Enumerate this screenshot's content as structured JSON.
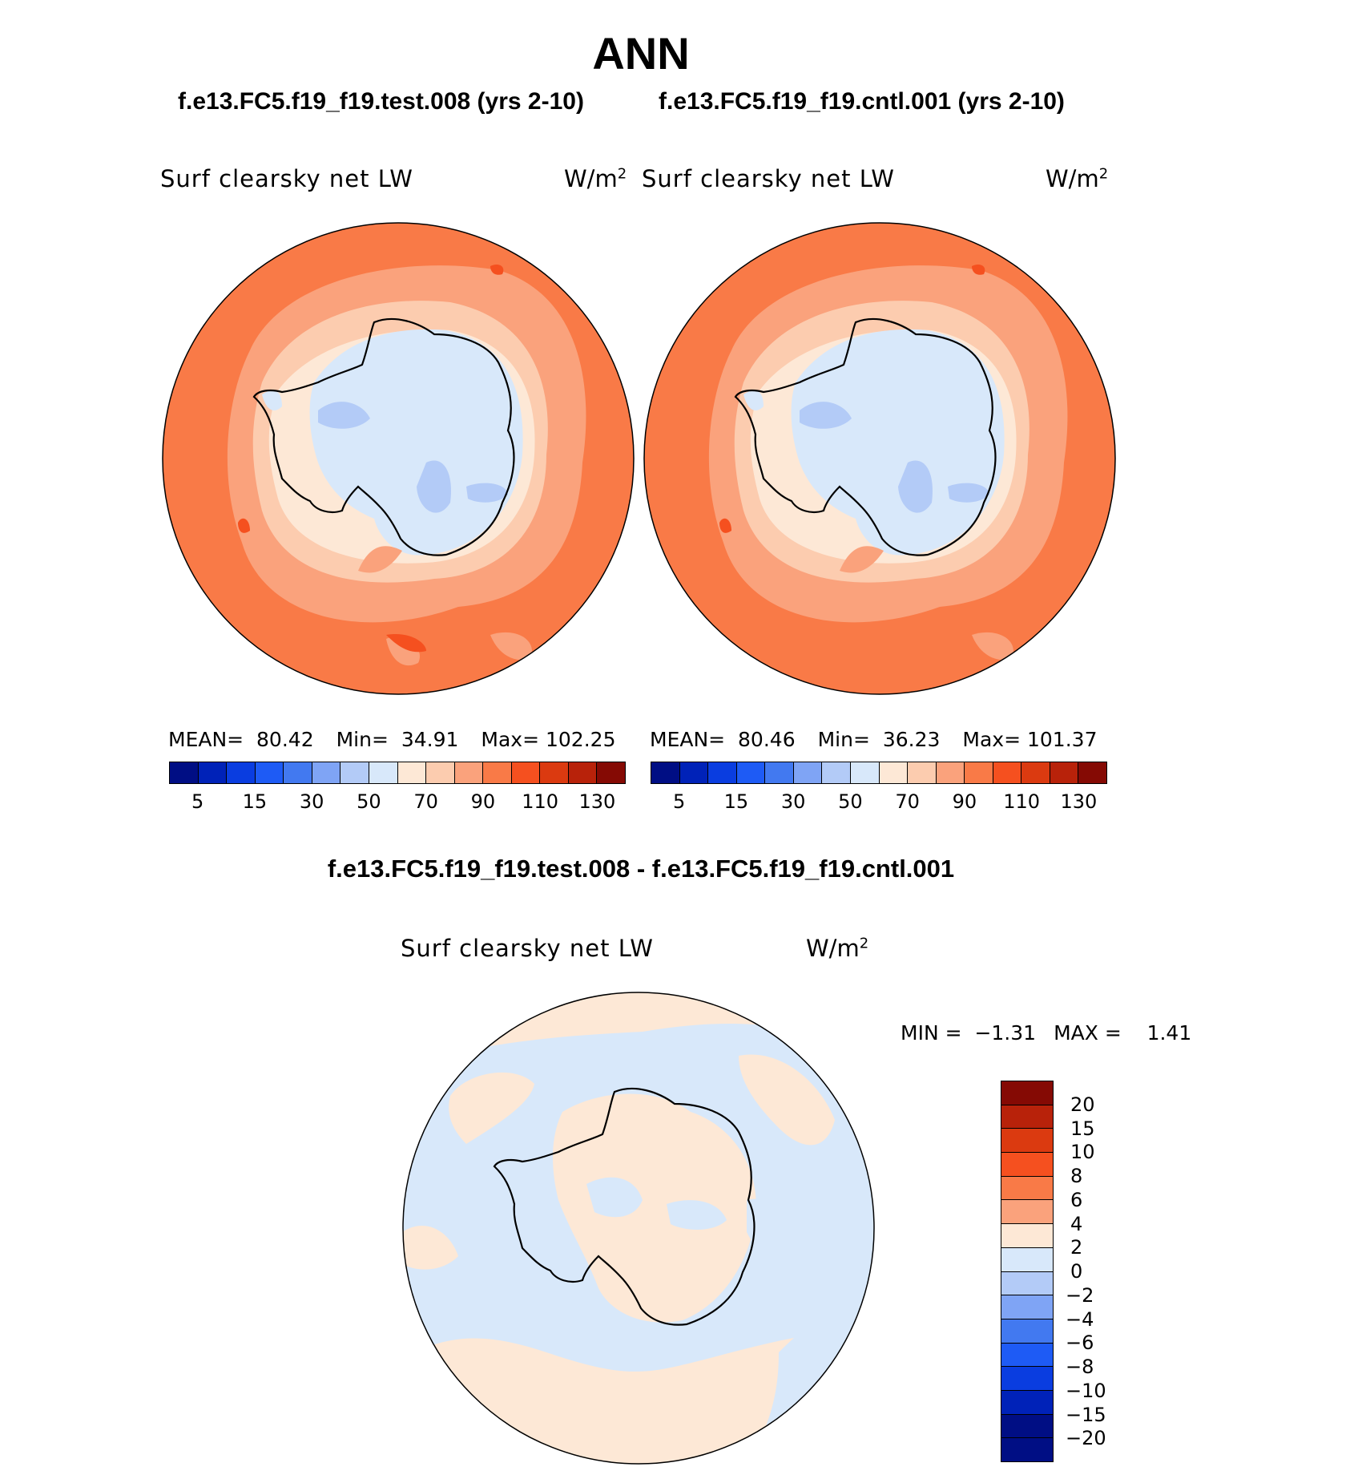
{
  "title": "ANN",
  "panels": {
    "test": {
      "case": "f.e13.FC5.f19_f19.test.008 (yrs 2-10)",
      "variable": "Surf clearsky net LW",
      "unit_base": "W/m",
      "unit_exp": "2",
      "mean_label": "MEAN=",
      "mean": "80.42",
      "min_label": "Min=",
      "min": "34.91",
      "max_label": "Max=",
      "max": "102.25"
    },
    "cntl": {
      "case": "f.e13.FC5.f19_f19.cntl.001 (yrs 2-10)",
      "variable": "Surf clearsky net LW",
      "unit_base": "W/m",
      "unit_exp": "2",
      "mean_label": "MEAN=",
      "mean": "80.46",
      "min_label": "Min=",
      "min": "36.23",
      "max_label": "Max=",
      "max": "101.37"
    },
    "diff": {
      "case": "f.e13.FC5.f19_f19.test.008 - f.e13.FC5.f19_f19.cntl.001",
      "variable": "Surf clearsky net LW",
      "unit_base": "W/m",
      "unit_exp": "2",
      "min_label": "MIN =",
      "min": "−1.31",
      "max_label": "MAX =",
      "max": "1.41"
    }
  },
  "chart_data": [
    {
      "type": "heatmap",
      "projection": "south-polar-stereographic",
      "title": "f.e13.FC5.f19_f19.test.008 (yrs 2-10)",
      "variable": "Surf clearsky net LW",
      "units": "W/m^2",
      "mean": 80.42,
      "min": 34.91,
      "max": 102.25,
      "colorbar_tick_labels": [
        "5",
        "15",
        "30",
        "50",
        "70",
        "90",
        "110",
        "130"
      ],
      "colorbar_levels": [
        5,
        10,
        15,
        20,
        30,
        40,
        50,
        60,
        70,
        80,
        90,
        100,
        110,
        120,
        130
      ],
      "colorbar_colors": [
        "#000E84",
        "#0022B8",
        "#0A3DE0",
        "#1E5BF5",
        "#4279F0",
        "#7FA4F5",
        "#B3CBF7",
        "#D8E8FA",
        "#FDE8D6",
        "#FCCCAF",
        "#FAA27C",
        "#F97A47",
        "#F5501F",
        "#DB3A10",
        "#B8220A",
        "#850A04"
      ]
    },
    {
      "type": "heatmap",
      "projection": "south-polar-stereographic",
      "title": "f.e13.FC5.f19_f19.cntl.001 (yrs 2-10)",
      "variable": "Surf clearsky net LW",
      "units": "W/m^2",
      "mean": 80.46,
      "min": 36.23,
      "max": 101.37,
      "colorbar_tick_labels": [
        "5",
        "15",
        "30",
        "50",
        "70",
        "90",
        "110",
        "130"
      ],
      "colorbar_levels": [
        5,
        10,
        15,
        20,
        30,
        40,
        50,
        60,
        70,
        80,
        90,
        100,
        110,
        120,
        130
      ],
      "colorbar_colors": [
        "#000E84",
        "#0022B8",
        "#0A3DE0",
        "#1E5BF5",
        "#4279F0",
        "#7FA4F5",
        "#B3CBF7",
        "#D8E8FA",
        "#FDE8D6",
        "#FCCCAF",
        "#FAA27C",
        "#F97A47",
        "#F5501F",
        "#DB3A10",
        "#B8220A",
        "#850A04"
      ]
    },
    {
      "type": "heatmap",
      "projection": "south-polar-stereographic",
      "title": "f.e13.FC5.f19_f19.test.008 - f.e13.FC5.f19_f19.cntl.001",
      "variable": "Surf clearsky net LW",
      "units": "W/m^2",
      "min": -1.31,
      "max": 1.41,
      "colorbar_tick_labels": [
        "20",
        "15",
        "10",
        "8",
        "6",
        "4",
        "2",
        "0",
        "−2",
        "−4",
        "−6",
        "−8",
        "−10",
        "−15",
        "−20"
      ],
      "colorbar_levels": [
        20,
        15,
        10,
        8,
        6,
        4,
        2,
        0,
        -2,
        -4,
        -6,
        -8,
        -10,
        -15,
        -20
      ],
      "colorbar_colors": [
        "#850A04",
        "#B8220A",
        "#DB3A10",
        "#F5501F",
        "#F97A47",
        "#FAA27C",
        "#FDE8D6",
        "#D8E8FA",
        "#B3CBF7",
        "#7FA4F5",
        "#4279F0",
        "#1E5BF5",
        "#0A3DE0",
        "#0022B8",
        "#000E84",
        "#000E84"
      ]
    }
  ]
}
